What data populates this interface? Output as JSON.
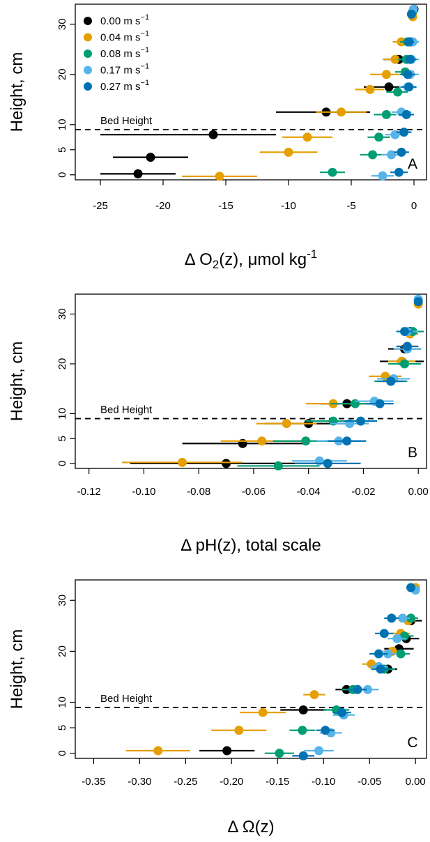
{
  "colors": {
    "v000": "#000000",
    "v004": "#E69F00",
    "v008": "#009E73",
    "v017": "#56B4E9",
    "v027": "#0072B2"
  },
  "legend": {
    "position": "top-left",
    "entries": [
      {
        "key": "v000",
        "label": "0.00 m s",
        "exp": "−1"
      },
      {
        "key": "v004",
        "label": "0.04 m s",
        "exp": "−1"
      },
      {
        "key": "v008",
        "label": "0.08 m s",
        "exp": "−1"
      },
      {
        "key": "v017",
        "label": "0.17 m s",
        "exp": "−1"
      },
      {
        "key": "v027",
        "label": "0.27 m s",
        "exp": "−1"
      }
    ]
  },
  "chart_data": [
    {
      "type": "scatter",
      "panel_label": "A",
      "xlabel_prefix": "Δ O",
      "xlabel_sub": "2",
      "xlabel_mid": "(z), μmol kg",
      "xlabel_sup": "-1",
      "ylabel": "Height, cm",
      "xlim": [
        -27,
        1
      ],
      "ylim": [
        -1,
        34
      ],
      "xticks": [
        -25,
        -20,
        -15,
        -10,
        -5,
        0
      ],
      "xtick_labels": [
        "-25",
        "-20",
        "-15",
        "-10",
        "-5",
        "0"
      ],
      "yticks": [
        0,
        5,
        10,
        20,
        30
      ],
      "ytick_labels": [
        "0",
        "5",
        "10",
        "20",
        "30"
      ],
      "bed_height": 9,
      "bed_label": "Bed Height",
      "legend": true,
      "series": [
        {
          "key": "v000",
          "points": [
            [
              0,
              33,
              0,
              0
            ],
            [
              -0.2,
              26.5,
              1,
              0.5
            ],
            [
              -1.2,
              23,
              1.2,
              1
            ],
            [
              -2,
              17.5,
              2,
              1.5
            ],
            [
              -7,
              12.5,
              4,
              3.5
            ],
            [
              -16,
              8,
              9,
              5
            ],
            [
              -21,
              3.5,
              3,
              3
            ],
            [
              -22,
              0.2,
              3,
              3
            ]
          ]
        },
        {
          "key": "v004",
          "points": [
            [
              -0.1,
              31.5,
              0,
              0
            ],
            [
              -1,
              26.5,
              0.7,
              0.5
            ],
            [
              -1.5,
              23,
              1,
              0.7
            ],
            [
              -2.2,
              20,
              1.3,
              1.2
            ],
            [
              -3.5,
              17,
              1.2,
              1.1
            ],
            [
              -5.8,
              12.5,
              2,
              2
            ],
            [
              -8.5,
              7.5,
              2,
              2
            ],
            [
              -10,
              4.5,
              2.3,
              2.3
            ],
            [
              -15.5,
              -0.3,
              3,
              3
            ]
          ]
        },
        {
          "key": "v008",
          "points": [
            [
              -0.1,
              32.5,
              0,
              0
            ],
            [
              -0.5,
              26.5,
              0.6,
              0.5
            ],
            [
              -0.6,
              23,
              0.7,
              0.7
            ],
            [
              -0.7,
              20.5,
              0.8,
              0.7
            ],
            [
              -1.3,
              16.5,
              0.9,
              0.8
            ],
            [
              -2.2,
              12,
              1,
              0.8
            ],
            [
              -2.8,
              7.5,
              0.9,
              0.9
            ],
            [
              -3.3,
              4,
              1,
              0.9
            ],
            [
              -6.5,
              0.5,
              1,
              1
            ]
          ]
        },
        {
          "key": "v017",
          "points": [
            [
              -0.05,
              33,
              0,
              0
            ],
            [
              -0.1,
              26.5,
              0.5,
              0.5
            ],
            [
              -0.2,
              23,
              0.6,
              0.6
            ],
            [
              -0.3,
              20,
              0.7,
              0.7
            ],
            [
              -0.5,
              17.5,
              0.7,
              0.7
            ],
            [
              -1,
              12.5,
              0.8,
              0.8
            ],
            [
              -1.5,
              8,
              0.8,
              0.8
            ],
            [
              -1.8,
              4,
              0.8,
              0.8
            ],
            [
              -2.5,
              -0.2,
              0.9,
              0.9
            ]
          ]
        },
        {
          "key": "v027",
          "points": [
            [
              -0.2,
              32,
              0,
              0
            ],
            [
              -0.4,
              26.5,
              0.4,
              0.4
            ],
            [
              -0.3,
              23,
              0.5,
              0.5
            ],
            [
              -0.5,
              20,
              0.6,
              0.6
            ],
            [
              -0.4,
              17.5,
              0.6,
              0.6
            ],
            [
              -0.6,
              12,
              0.6,
              0.6
            ],
            [
              -0.8,
              8.5,
              0.6,
              0.6
            ],
            [
              -1,
              4.5,
              0.6,
              0.6
            ],
            [
              -1.2,
              0.5,
              0.7,
              0.7
            ]
          ]
        }
      ]
    },
    {
      "type": "scatter",
      "panel_label": "B",
      "xlabel_prefix": "Δ pH(z), total scale",
      "xlabel_sub": "",
      "xlabel_mid": "",
      "xlabel_sup": "",
      "ylabel": "Height, cm",
      "xlim": [
        -0.125,
        0.003
      ],
      "ylim": [
        -1,
        34
      ],
      "xticks": [
        -0.12,
        -0.1,
        -0.08,
        -0.06,
        -0.04,
        -0.02,
        0
      ],
      "xtick_labels": [
        "-0.12",
        "-0.10",
        "-0.08",
        "-0.06",
        "-0.04",
        "-0.02",
        "0.00"
      ],
      "yticks": [
        0,
        5,
        10,
        20,
        30
      ],
      "ytick_labels": [
        "0",
        "5",
        "10",
        "20",
        "30"
      ],
      "bed_height": 9,
      "bed_label": "Bed Height",
      "legend": false,
      "series": [
        {
          "key": "v000",
          "points": [
            [
              -0.003,
              26.5,
              0.004,
              0.004
            ],
            [
              -0.005,
              23,
              0.006,
              0.006
            ],
            [
              -0.006,
              20.5,
              0.008,
              0.008
            ],
            [
              -0.026,
              12,
              0.01,
              0.01
            ],
            [
              -0.04,
              8,
              0.016,
              0.016
            ],
            [
              -0.064,
              4,
              0.022,
              0.022
            ],
            [
              -0.07,
              0,
              0.035,
              0.035
            ]
          ]
        },
        {
          "key": "v004",
          "points": [
            [
              0,
              32,
              0,
              0
            ],
            [
              -0.003,
              26,
              0.003,
              0.003
            ],
            [
              -0.004,
              23.5,
              0.004,
              0.004
            ],
            [
              -0.006,
              20.5,
              0.005,
              0.005
            ],
            [
              -0.012,
              17.5,
              0.006,
              0.006
            ],
            [
              -0.031,
              12,
              0.01,
              0.01
            ],
            [
              -0.048,
              8,
              0.011,
              0.011
            ],
            [
              -0.057,
              4.5,
              0.015,
              0.015
            ],
            [
              -0.086,
              0.2,
              0.022,
              0.022
            ]
          ]
        },
        {
          "key": "v008",
          "points": [
            [
              -0.002,
              26.5,
              0.004,
              0.004
            ],
            [
              -0.004,
              23,
              0.005,
              0.005
            ],
            [
              -0.005,
              20,
              0.006,
              0.006
            ],
            [
              -0.01,
              16.5,
              0.006,
              0.006
            ],
            [
              -0.023,
              12,
              0.009,
              0.009
            ],
            [
              -0.031,
              8.5,
              0.01,
              0.01
            ],
            [
              -0.041,
              4.5,
              0.012,
              0.012
            ],
            [
              -0.051,
              -0.5,
              0.015,
              0.015
            ]
          ]
        },
        {
          "key": "v017",
          "points": [
            [
              0,
              33,
              0,
              0
            ],
            [
              -0.004,
              26.5,
              0.004,
              0.004
            ],
            [
              -0.004,
              23,
              0.005,
              0.005
            ],
            [
              -0.009,
              17,
              0.006,
              0.006
            ],
            [
              -0.016,
              12.5,
              0.007,
              0.007
            ],
            [
              -0.025,
              8,
              0.007,
              0.007
            ],
            [
              -0.029,
              4.5,
              0.008,
              0.008
            ],
            [
              -0.036,
              0.5,
              0.01,
              0.01
            ]
          ]
        },
        {
          "key": "v027",
          "points": [
            [
              0,
              32.5,
              0,
              0
            ],
            [
              -0.005,
              26.5,
              0.003,
              0.003
            ],
            [
              -0.004,
              23.5,
              0.004,
              0.004
            ],
            [
              -0.01,
              16.5,
              0.005,
              0.005
            ],
            [
              -0.014,
              12,
              0.005,
              0.005
            ],
            [
              -0.021,
              8.5,
              0.006,
              0.006
            ],
            [
              -0.026,
              4.5,
              0.007,
              0.007
            ],
            [
              -0.033,
              0,
              0.012,
              0.012
            ]
          ]
        }
      ]
    },
    {
      "type": "scatter",
      "panel_label": "C",
      "xlabel_prefix": "Δ Ω(z)",
      "xlabel_sub": "",
      "xlabel_mid": "",
      "xlabel_sup": "",
      "ylabel": "Height, cm",
      "xlim": [
        -0.37,
        0.012
      ],
      "ylim": [
        -1,
        34
      ],
      "xticks": [
        -0.35,
        -0.3,
        -0.25,
        -0.2,
        -0.15,
        -0.1,
        -0.05,
        0
      ],
      "xtick_labels": [
        "-0.35",
        "-0.30",
        "-0.25",
        "-0.20",
        "-0.15",
        "-0.10",
        "-0.05",
        "0.00"
      ],
      "yticks": [
        0,
        5,
        10,
        20,
        30
      ],
      "ytick_labels": [
        "0",
        "5",
        "10",
        "20",
        "30"
      ],
      "bed_height": 9,
      "bed_label": "Bed Height",
      "legend": false,
      "series": [
        {
          "key": "v000",
          "points": [
            [
              -0.005,
              26,
              0.012,
              0.012
            ],
            [
              -0.01,
              22.5,
              0.014,
              0.014
            ],
            [
              -0.018,
              20.5,
              0.016,
              0.016
            ],
            [
              -0.03,
              16.5,
              0.01,
              0.01
            ],
            [
              -0.075,
              12.5,
              0.012,
              0.012
            ],
            [
              -0.122,
              8.5,
              0.025,
              0.025
            ],
            [
              -0.205,
              0.5,
              0.03,
              0.03
            ]
          ]
        },
        {
          "key": "v004",
          "points": [
            [
              0,
              32.5,
              0,
              0
            ],
            [
              -0.008,
              26,
              0.008,
              0.008
            ],
            [
              -0.016,
              23.5,
              0.01,
              0.01
            ],
            [
              -0.025,
              20,
              0.01,
              0.01
            ],
            [
              -0.048,
              17.5,
              0.01,
              0.01
            ],
            [
              -0.11,
              11.5,
              0.012,
              0.012
            ],
            [
              -0.166,
              8,
              0.025,
              0.025
            ],
            [
              -0.192,
              4.5,
              0.03,
              0.03
            ],
            [
              -0.28,
              0.5,
              0.035,
              0.035
            ]
          ]
        },
        {
          "key": "v008",
          "points": [
            [
              -0.005,
              26.5,
              0.008,
              0.008
            ],
            [
              -0.012,
              23,
              0.01,
              0.01
            ],
            [
              -0.016,
              19.5,
              0.01,
              0.01
            ],
            [
              -0.034,
              16.5,
              0.012,
              0.012
            ],
            [
              -0.068,
              12.5,
              0.012,
              0.012
            ],
            [
              -0.086,
              8.5,
              0.014,
              0.014
            ],
            [
              -0.123,
              4.5,
              0.014,
              0.014
            ],
            [
              -0.148,
              0,
              0.016,
              0.016
            ]
          ]
        },
        {
          "key": "v017",
          "points": [
            [
              0,
              32,
              0,
              0
            ],
            [
              -0.014,
              26.5,
              0.008,
              0.008
            ],
            [
              -0.02,
              22.5,
              0.01,
              0.01
            ],
            [
              -0.03,
              19.5,
              0.01,
              0.01
            ],
            [
              -0.04,
              17,
              0.01,
              0.01
            ],
            [
              -0.052,
              12.5,
              0.012,
              0.012
            ],
            [
              -0.078,
              7.5,
              0.012,
              0.012
            ],
            [
              -0.092,
              4,
              0.012,
              0.012
            ],
            [
              -0.105,
              0.5,
              0.016,
              0.016
            ]
          ]
        },
        {
          "key": "v027",
          "points": [
            [
              -0.005,
              32.5,
              0,
              0
            ],
            [
              -0.026,
              26.5,
              0.008,
              0.008
            ],
            [
              -0.034,
              23.5,
              0.01,
              0.01
            ],
            [
              -0.04,
              19.5,
              0.01,
              0.01
            ],
            [
              -0.038,
              16.5,
              0.01,
              0.01
            ],
            [
              -0.063,
              12.5,
              0.01,
              0.01
            ],
            [
              -0.08,
              8,
              0.01,
              0.01
            ],
            [
              -0.098,
              4.5,
              0.01,
              0.01
            ],
            [
              -0.122,
              -0.5,
              0.012,
              0.012
            ]
          ]
        }
      ]
    }
  ]
}
